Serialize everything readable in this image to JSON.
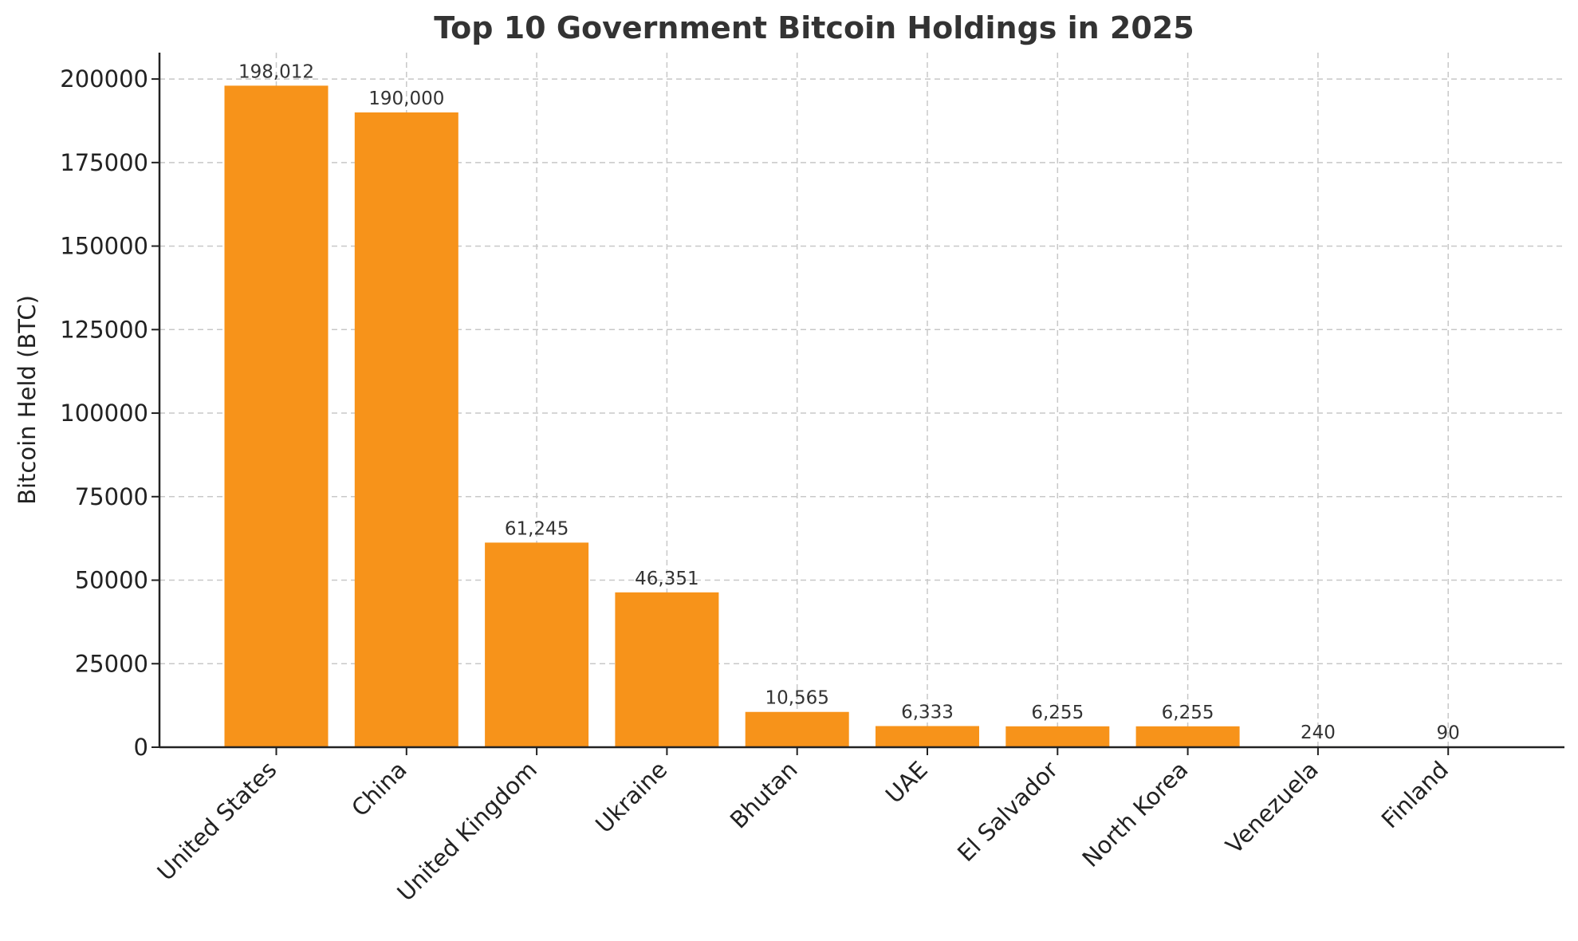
{
  "chart_data": {
    "type": "bar",
    "title": "Top 10 Government Bitcoin Holdings in 2025",
    "xlabel": "",
    "ylabel": "Bitcoin Held (BTC)",
    "categories": [
      "United States",
      "China",
      "United Kingdom",
      "Ukraine",
      "Bhutan",
      "UAE",
      "El Salvador",
      "North Korea",
      "Venezuela",
      "Finland"
    ],
    "values": [
      198012,
      190000,
      61245,
      46351,
      10565,
      6333,
      6255,
      6255,
      240,
      90
    ],
    "data_labels": [
      "198,012",
      "190,000",
      "61,245",
      "46,351",
      "10,565",
      "6,333",
      "6,255",
      "6,255",
      "240",
      "90"
    ],
    "yticks": [
      0,
      25000,
      50000,
      75000,
      100000,
      125000,
      150000,
      175000,
      200000
    ],
    "ytick_labels": [
      "0",
      "25000",
      "50000",
      "75000",
      "100000",
      "125000",
      "150000",
      "175000",
      "200000"
    ],
    "ylim": [
      0,
      207900
    ],
    "grid": true,
    "bar_color": "#f7931a"
  }
}
